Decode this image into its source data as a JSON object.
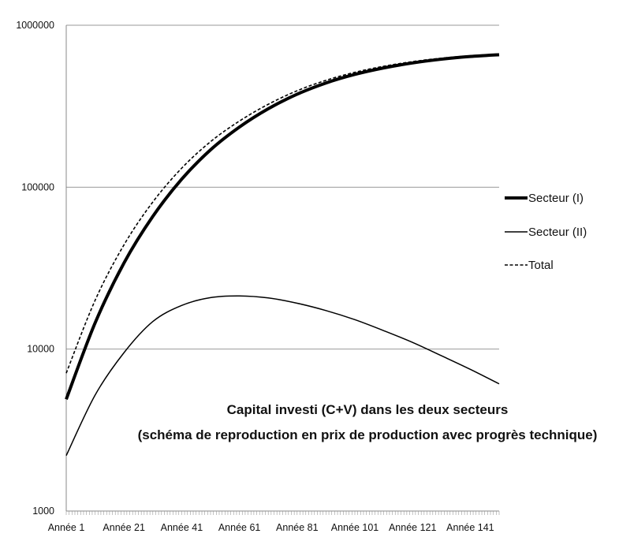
{
  "chart_data": {
    "type": "line",
    "title": "Capital investi (C+V) dans les deux secteurs",
    "subtitle": "(schéma de reproduction en prix de production avec progrès technique)",
    "xlabel": "",
    "ylabel": "",
    "y_scale": "log",
    "ylim": [
      1000,
      1000000
    ],
    "y_ticks": [
      1000,
      10000,
      100000,
      1000000
    ],
    "y_tick_labels": [
      "1000",
      "10000",
      "100000",
      "1000000"
    ],
    "xlim": [
      1,
      151
    ],
    "x_ticks": [
      1,
      21,
      41,
      61,
      81,
      101,
      121,
      141
    ],
    "x_tick_labels": [
      "Année 1",
      "Année 21",
      "Année 41",
      "Année 61",
      "Année 81",
      "Année 101",
      "Année 121",
      "Année 141"
    ],
    "grid": "horizontal",
    "legend_position": "right",
    "x": [
      1,
      11,
      21,
      31,
      41,
      51,
      61,
      71,
      81,
      91,
      101,
      111,
      121,
      131,
      141,
      151
    ],
    "series": [
      {
        "name": "Secteur (I)",
        "style": "thick-solid",
        "values": [
          4900,
          14500,
          34000,
          66000,
          112000,
          170000,
          235000,
          305000,
          375000,
          440000,
          497000,
          545000,
          585000,
          617000,
          641000,
          658000
        ]
      },
      {
        "name": "Secteur (II)",
        "style": "thin-solid",
        "values": [
          2200,
          5200,
          9500,
          14800,
          18600,
          20800,
          21300,
          20700,
          19200,
          17300,
          15200,
          13000,
          11000,
          9100,
          7500,
          6100
        ]
      },
      {
        "name": "Total",
        "style": "dashed",
        "values": [
          7100,
          20000,
          44000,
          81000,
          131000,
          191000,
          256000,
          325000,
          394000,
          457000,
          512000,
          558000,
          596000,
          626000,
          648000,
          664000
        ]
      }
    ]
  }
}
